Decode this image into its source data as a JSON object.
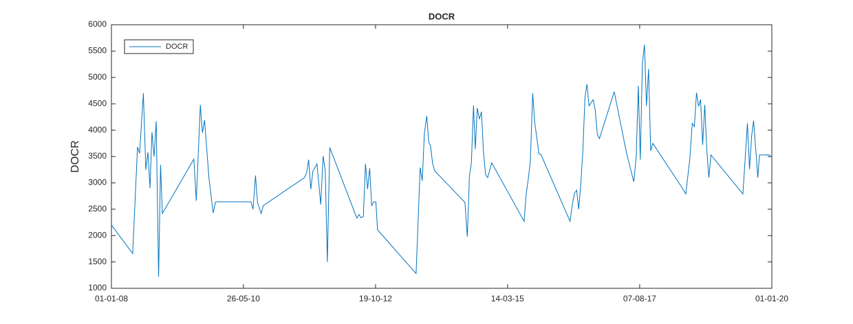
{
  "chart_data": {
    "type": "line",
    "title": "DOCR",
    "y_label": "DOCR",
    "x": [
      "01-01-08",
      "21-05-08",
      "22-06-08",
      "06-07-08",
      "31-07-08",
      "16-08-08",
      "30-08-08",
      "13-09-08",
      "26-09-08",
      "10-10-08",
      "24-10-08",
      "09-11-08",
      "22-11-08",
      "04-12-08",
      "01-07-09",
      "17-07-09",
      "13-08-09",
      "27-08-09",
      "10-09-09",
      "09-10-09",
      "06-11-09",
      "22-11-09",
      "15-07-10",
      "29-07-10",
      "14-08-10",
      "28-08-10",
      "21-09-10",
      "05-10-10",
      "06-07-11",
      "20-07-11",
      "02-08-11",
      "16-08-11",
      "30-08-11",
      "26-09-11",
      "21-10-11",
      "06-11-11",
      "20-11-11",
      "04-12-11",
      "20-12-11",
      "17-06-12",
      "01-07-12",
      "14-07-12",
      "30-07-12",
      "13-08-12",
      "27-08-12",
      "10-09-12",
      "23-09-12",
      "07-10-12",
      "21-10-12",
      "01-11-12",
      "15-07-13",
      "11-08-13",
      "25-08-13",
      "08-09-13",
      "24-09-13",
      "07-10-13",
      "19-10-13",
      "01-11-13",
      "15-11-13",
      "04-06-14",
      "20-06-14",
      "04-07-14",
      "17-07-14",
      "31-07-14",
      "12-08-14",
      "25-08-14",
      "08-09-14",
      "22-09-14",
      "05-10-14",
      "19-10-14",
      "02-11-14",
      "29-11-14",
      "02-07-15",
      "15-07-15",
      "29-07-15",
      "12-08-15",
      "28-08-15",
      "10-09-15",
      "24-09-15",
      "08-10-15",
      "21-10-15",
      "02-05-16",
      "18-05-16",
      "01-06-16",
      "15-06-16",
      "28-06-16",
      "12-07-16",
      "26-07-16",
      "09-08-16",
      "22-08-16",
      "05-09-16",
      "19-09-16",
      "02-10-16",
      "16-10-16",
      "30-10-16",
      "13-11-16",
      "19-02-17",
      "12-05-17",
      "29-06-17",
      "15-07-17",
      "29-07-17",
      "11-08-17",
      "25-08-17",
      "08-09-17",
      "21-09-17",
      "05-10-17",
      "19-10-17",
      "02-11-17",
      "08-05-18",
      "09-06-18",
      "06-07-18",
      "22-07-18",
      "05-08-18",
      "19-08-18",
      "02-09-18",
      "15-09-18",
      "29-09-18",
      "13-10-18",
      "26-10-18",
      "09-11-18",
      "23-11-18",
      "23-06-19",
      "23-07-19",
      "06-08-19",
      "20-08-19",
      "02-09-19",
      "16-09-19",
      "30-09-19",
      "11-10-19",
      "14-12-19",
      "01-01-20"
    ],
    "series": [
      {
        "name": "DOCR",
        "color": "#0072bd",
        "values": [
          2200,
          1660,
          3680,
          3560,
          4700,
          3250,
          3580,
          2900,
          3960,
          3500,
          4170,
          1220,
          3340,
          2420,
          3450,
          2660,
          4480,
          3950,
          4190,
          3100,
          2430,
          2640,
          2640,
          2500,
          3140,
          2620,
          2420,
          2570,
          3100,
          3200,
          3440,
          2880,
          3220,
          3360,
          2590,
          3510,
          3230,
          1500,
          3670,
          2330,
          2400,
          2340,
          2360,
          3360,
          2880,
          3280,
          2570,
          2640,
          2640,
          2110,
          1280,
          3290,
          3040,
          3940,
          4270,
          3770,
          3700,
          3380,
          3230,
          2630,
          1980,
          3130,
          3380,
          4470,
          3640,
          4420,
          4210,
          4350,
          3590,
          3160,
          3100,
          3380,
          2270,
          2770,
          3060,
          3400,
          4700,
          4150,
          3860,
          3550,
          3540,
          2270,
          2610,
          2810,
          2860,
          2500,
          2960,
          3620,
          4630,
          4870,
          4460,
          4520,
          4580,
          4380,
          3920,
          3840,
          4730,
          3560,
          3020,
          3500,
          4840,
          3440,
          5270,
          5620,
          4460,
          5160,
          3610,
          3750,
          2940,
          2790,
          3460,
          4130,
          4070,
          4710,
          4450,
          4580,
          3720,
          4480,
          3650,
          3100,
          3530,
          2790,
          4130,
          3260,
          3890,
          4180,
          3650,
          3100,
          3530,
          3530,
          3480
        ]
      }
    ],
    "xlim": [
      "01-01-08",
      "01-01-20"
    ],
    "xticks": [
      "01-01-08",
      "26-05-10",
      "19-10-12",
      "14-03-15",
      "07-08-17",
      "01-01-20"
    ],
    "ylim": [
      1000,
      6000
    ],
    "yticks": [
      1000,
      1500,
      2000,
      2500,
      3000,
      3500,
      4000,
      4500,
      5000,
      5500,
      6000
    ],
    "grid": false,
    "legend": "upper left"
  }
}
